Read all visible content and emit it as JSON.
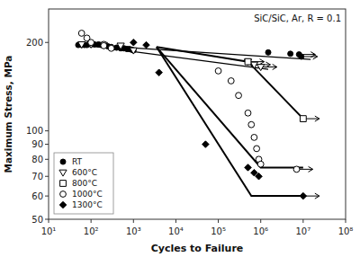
{
  "chart_data": {
    "type": "scatter",
    "annotation": "SiC/SiC, Ar, R = 0.1",
    "x_label": "Cycles to Failure",
    "y_label": "Maximum Stress, MPa",
    "log": true,
    "xlim": [
      10,
      100000000
    ],
    "ylim": [
      50,
      260
    ],
    "xticks": [
      {
        "value": 10,
        "label": "10¹"
      },
      {
        "value": 100,
        "label": "10²"
      },
      {
        "value": 1000,
        "label": "10³"
      },
      {
        "value": 10000,
        "label": "10⁴"
      },
      {
        "value": 100000,
        "label": "10⁵"
      },
      {
        "value": 1000000,
        "label": "10⁶"
      },
      {
        "value": 10000000,
        "label": "10⁷"
      },
      {
        "value": 100000000,
        "label": "10⁸"
      }
    ],
    "yticks": [
      50,
      60,
      70,
      80,
      90,
      100,
      200
    ],
    "grid": false,
    "legend": "lower left",
    "series": [
      {
        "name": "RT",
        "type": "scatter",
        "marker": "circle",
        "color": "#000000",
        "x": [
          50,
          60,
          70,
          80,
          100,
          120,
          150,
          200,
          250,
          300,
          400,
          500,
          600,
          700,
          800,
          900,
          1000,
          1500000,
          5000000,
          8000000,
          9000000
        ],
        "values": [
          196,
          196,
          196,
          196,
          197,
          197,
          197,
          195,
          194,
          193,
          192,
          191,
          191,
          190,
          190,
          189,
          188,
          185,
          183,
          182,
          179
        ],
        "arrow_x": [
          8000000,
          9000000
        ],
        "arrow_values": [
          182,
          179
        ]
      },
      {
        "name": "600°C",
        "type": "scatter",
        "marker": "triangle-down",
        "color": "#ffffff",
        "x": [
          60,
          100,
          200,
          500,
          1000,
          500000,
          700000,
          1000000
        ],
        "values": [
          197,
          197,
          196,
          195,
          188,
          172,
          168,
          165
        ],
        "arrow_x": [
          500000,
          700000,
          1000000
        ],
        "arrow_values": [
          172,
          168,
          165
        ]
      },
      {
        "name": "800°C",
        "type": "scatter",
        "marker": "square",
        "color": "#ffffff",
        "x": [
          500000,
          10000000
        ],
        "values": [
          172,
          110
        ],
        "arrow_x": [
          10000000
        ],
        "arrow_values": [
          110
        ]
      },
      {
        "name": "1000°C",
        "type": "scatter",
        "marker": "circle",
        "color": "#ffffff",
        "x": [
          60,
          80,
          100,
          200,
          200,
          300,
          100000,
          200000,
          300000,
          500000,
          600000,
          700000,
          800000,
          900000,
          1000000,
          7000000
        ],
        "values": [
          215,
          207,
          200,
          197,
          195,
          191,
          160,
          148,
          132,
          115,
          105,
          95,
          87,
          80,
          77,
          74
        ],
        "arrow_x": [
          7000000
        ],
        "arrow_values": [
          74
        ]
      },
      {
        "name": "1300°C",
        "type": "scatter",
        "marker": "diamond",
        "color": "#000000",
        "x": [
          1000,
          2000,
          4000,
          50000,
          500000,
          700000,
          900000,
          10000000
        ],
        "values": [
          200,
          196,
          158,
          90,
          75,
          72,
          70,
          60
        ],
        "arrow_x": [
          10000000
        ],
        "arrow_values": [
          60
        ]
      },
      {
        "type": "line",
        "line_style": "thin",
        "color": "#000000",
        "x": [
          50,
          15000000
        ],
        "values": [
          197,
          175
        ]
      },
      {
        "type": "line",
        "line_style": "thin",
        "color": "#000000",
        "x": [
          50,
          1500000
        ],
        "values": [
          197,
          162
        ]
      },
      {
        "type": "line",
        "line_style": "thick",
        "color": "#000000",
        "x": [
          3500,
          500000,
          10000000
        ],
        "values": [
          193,
          172,
          110
        ]
      },
      {
        "type": "line",
        "line_style": "thick",
        "color": "#000000",
        "x": [
          3500,
          1000000,
          10000000
        ],
        "values": [
          193,
          75,
          75
        ]
      },
      {
        "type": "line",
        "line_style": "thick",
        "color": "#000000",
        "x": [
          3500,
          600000,
          10000000
        ],
        "values": [
          193,
          60,
          60
        ]
      }
    ]
  }
}
